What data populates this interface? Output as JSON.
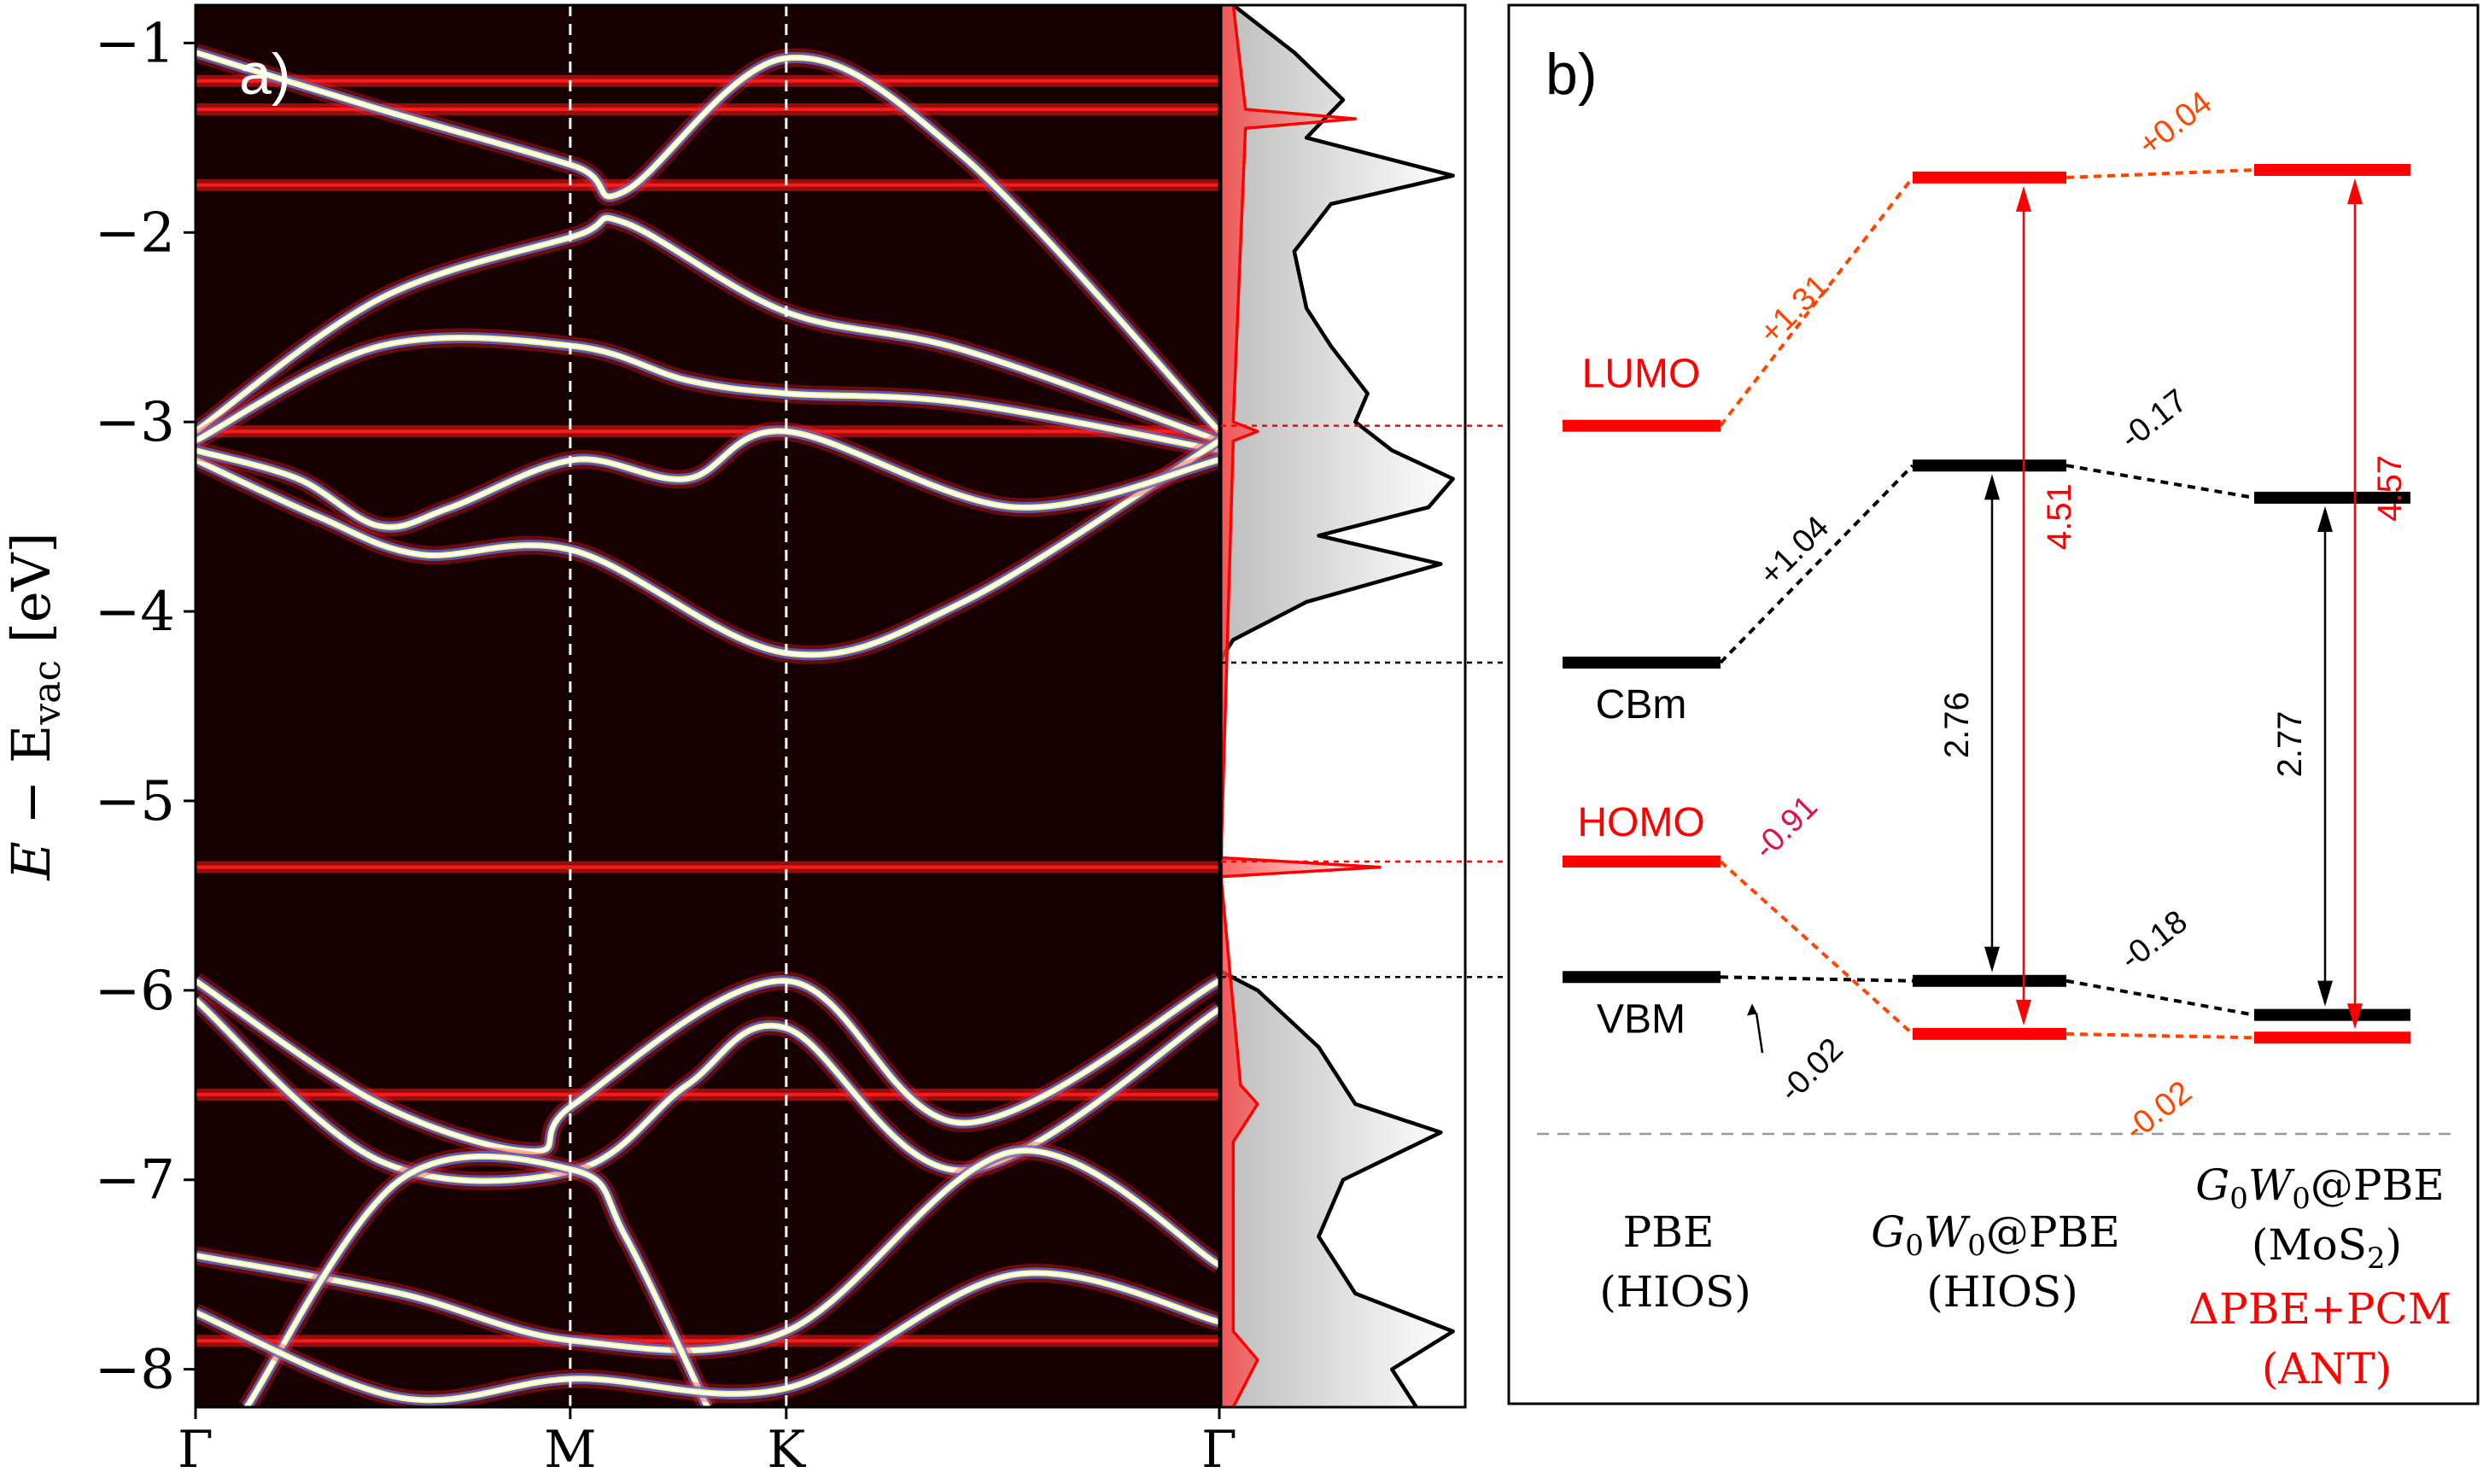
{
  "chart_data": [
    {
      "type": "line",
      "panel_label": "a)",
      "ylabel_parts": [
        "E",
        " − E",
        "vac",
        " [eV]"
      ],
      "ylim": [
        -8.2,
        -0.8
      ],
      "yticks": [
        -1,
        -2,
        -3,
        -4,
        -5,
        -6,
        -7,
        -8
      ],
      "ytick_labels": [
        "−1",
        "−2",
        "−3",
        "−4",
        "−5",
        "−6",
        "−7",
        "−8"
      ],
      "kpoints": [
        {
          "label": "Γ",
          "x": 0
        },
        {
          "label": "M",
          "x": 0.366
        },
        {
          "label": "K",
          "x": 0.577
        },
        {
          "label": "Γ",
          "x": 1
        }
      ],
      "bands": [
        [
          [
            0,
            -1.05
          ],
          [
            0.18,
            -1.35
          ],
          [
            0.37,
            -1.65
          ],
          [
            0.42,
            -1.78
          ],
          [
            0.577,
            -1.08
          ],
          [
            0.75,
            -1.6
          ],
          [
            1,
            -3.05
          ]
        ],
        [
          [
            0,
            -3.05
          ],
          [
            0.18,
            -2.35
          ],
          [
            0.37,
            -2.02
          ],
          [
            0.42,
            -1.95
          ],
          [
            0.577,
            -2.42
          ],
          [
            0.75,
            -2.62
          ],
          [
            1,
            -3.1
          ]
        ],
        [
          [
            0,
            -3.1
          ],
          [
            0.18,
            -2.6
          ],
          [
            0.37,
            -2.6
          ],
          [
            0.48,
            -2.78
          ],
          [
            0.577,
            -2.85
          ],
          [
            0.75,
            -2.9
          ],
          [
            1,
            -3.15
          ]
        ],
        [
          [
            0,
            -3.2
          ],
          [
            0.12,
            -3.5
          ],
          [
            0.22,
            -3.7
          ],
          [
            0.37,
            -3.68
          ],
          [
            0.577,
            -4.22
          ],
          [
            0.75,
            -3.95
          ],
          [
            1,
            -3.1
          ]
        ],
        [
          [
            0,
            -3.15
          ],
          [
            0.1,
            -3.3
          ],
          [
            0.18,
            -3.55
          ],
          [
            0.25,
            -3.45
          ],
          [
            0.37,
            -3.2
          ],
          [
            0.48,
            -3.3
          ],
          [
            0.577,
            -3.05
          ],
          [
            0.8,
            -3.45
          ],
          [
            1,
            -3.2
          ]
        ],
        [
          [
            0,
            -5.95
          ],
          [
            0.18,
            -6.6
          ],
          [
            0.33,
            -6.85
          ],
          [
            0.37,
            -6.6
          ],
          [
            0.577,
            -5.95
          ],
          [
            0.75,
            -6.7
          ],
          [
            1,
            -5.95
          ]
        ],
        [
          [
            0,
            -6.05
          ],
          [
            0.18,
            -6.9
          ],
          [
            0.37,
            -6.95
          ],
          [
            0.48,
            -6.5
          ],
          [
            0.577,
            -6.2
          ],
          [
            0.75,
            -6.95
          ],
          [
            1,
            -6.1
          ]
        ],
        [
          [
            0,
            -7.4
          ],
          [
            0.2,
            -7.6
          ],
          [
            0.37,
            -7.85
          ],
          [
            0.577,
            -7.8
          ],
          [
            0.8,
            -6.85
          ],
          [
            1,
            -7.45
          ]
        ],
        [
          [
            0.05,
            -8.2
          ],
          [
            0.2,
            -7.0
          ],
          [
            0.37,
            -6.95
          ],
          [
            0.42,
            -7.3
          ],
          [
            0.5,
            -8.2
          ]
        ],
        [
          [
            0,
            -7.7
          ],
          [
            0.2,
            -8.15
          ],
          [
            0.37,
            -8.05
          ],
          [
            0.577,
            -8.1
          ],
          [
            0.8,
            -7.5
          ],
          [
            1,
            -7.75
          ]
        ]
      ],
      "flat_levels": [
        -1.2,
        -1.35,
        -1.75,
        -3.05,
        -5.35,
        -6.55,
        -7.85
      ],
      "dos_total": [
        [
          -0.8,
          0.05
        ],
        [
          -1.05,
          0.3
        ],
        [
          -1.3,
          0.5
        ],
        [
          -1.5,
          0.35
        ],
        [
          -1.7,
          0.95
        ],
        [
          -1.85,
          0.45
        ],
        [
          -2.1,
          0.3
        ],
        [
          -2.4,
          0.35
        ],
        [
          -2.6,
          0.45
        ],
        [
          -2.85,
          0.6
        ],
        [
          -3.0,
          0.55
        ],
        [
          -3.15,
          0.7
        ],
        [
          -3.3,
          0.95
        ],
        [
          -3.45,
          0.85
        ],
        [
          -3.6,
          0.4
        ],
        [
          -3.75,
          0.9
        ],
        [
          -3.95,
          0.35
        ],
        [
          -4.15,
          0.05
        ],
        [
          -4.25,
          0.0
        ],
        [
          -5.9,
          0.0
        ],
        [
          -6.0,
          0.15
        ],
        [
          -6.3,
          0.4
        ],
        [
          -6.6,
          0.55
        ],
        [
          -6.75,
          0.9
        ],
        [
          -7.0,
          0.5
        ],
        [
          -7.3,
          0.4
        ],
        [
          -7.6,
          0.55
        ],
        [
          -7.8,
          0.95
        ],
        [
          -8.0,
          0.7
        ],
        [
          -8.2,
          0.8
        ]
      ],
      "dos_molecule": [
        [
          -0.8,
          0.05
        ],
        [
          -1.35,
          0.1
        ],
        [
          -1.4,
          0.55
        ],
        [
          -1.45,
          0.1
        ],
        [
          -3.0,
          0.05
        ],
        [
          -3.05,
          0.15
        ],
        [
          -3.1,
          0.05
        ],
        [
          -5.3,
          0.0
        ],
        [
          -5.35,
          0.65
        ],
        [
          -5.4,
          0.0
        ],
        [
          -6.5,
          0.08
        ],
        [
          -6.6,
          0.15
        ],
        [
          -6.8,
          0.05
        ],
        [
          -7.8,
          0.05
        ],
        [
          -7.95,
          0.15
        ],
        [
          -8.2,
          0.05
        ]
      ],
      "colors": {
        "background": "#160000",
        "flat": "#ff1a1a",
        "band": "#ffffff",
        "band_halo": "#5a6bd6",
        "dos": "#000000",
        "dos_mol": "#ff0000"
      }
    },
    {
      "type": "diagram",
      "panel_label": "b)",
      "columns": [
        {
          "lines": [
            [
              "PBE"
            ],
            [
              "(HIOS)"
            ]
          ]
        },
        {
          "lines": [
            [
              "G",
              "0",
              "W",
              "0",
              "@PBE"
            ],
            [
              "(HIOS)"
            ]
          ]
        },
        {
          "lines": [
            [
              "G",
              "0",
              "W",
              "0",
              "@PBE"
            ],
            [
              "(MoS",
              "2",
              ")"
            ]
          ],
          "extra": [
            "ΔPBE+PCM",
            "(ANT)"
          ]
        }
      ],
      "levels": {
        "pbe": {
          "LUMO": -3.02,
          "CBm": -4.27,
          "HOMO": -5.32,
          "VBM": -5.93
        },
        "g0w0": {
          "LUMO": -1.71,
          "CBm": -3.23,
          "HOMO": -6.23,
          "VBM": -5.95
        },
        "ant": {
          "LUMO": -1.67,
          "CBm": -3.4,
          "HOMO": -6.25,
          "VBM": -6.13
        }
      },
      "level_labels": {
        "LUMO": "LUMO",
        "CBm": "CBm",
        "HOMO": "HOMO",
        "VBM": "VBM"
      },
      "shifts": {
        "lumo1": "+1.31",
        "lumo2": "+0.04",
        "cbm1": "+1.04",
        "cbm2": "-0.17",
        "homo1": "-0.91",
        "homo2": "-0.02",
        "vbm1": "-0.02",
        "vbm2": "-0.18"
      },
      "gaps": {
        "g0w0_fund": "2.76",
        "g0w0_mol": "4.51",
        "ant_fund": "2.77",
        "ant_mol": "4.57"
      },
      "colors": {
        "red": "#ff0000",
        "black": "#000000",
        "orange": "#ff4500",
        "crimson": "#e0104a",
        "grey": "#999999"
      }
    }
  ]
}
